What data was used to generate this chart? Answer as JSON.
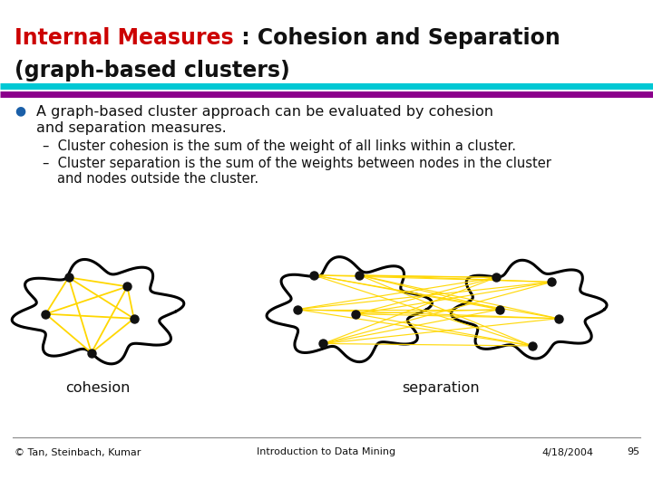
{
  "title_red": "Internal Measures",
  "title_black": " : Cohesion and Separation",
  "subtitle": "(graph-based clusters)",
  "bullet_text_line1": "A graph-based cluster approach can be evaluated by cohesion",
  "bullet_text_line2": "and separation measures.",
  "sub_bullets": [
    "Cluster cohesion is the sum of the weight of all links within a cluster.",
    "Cluster separation is the sum of the weights between nodes in the cluster\nand nodes outside the cluster."
  ],
  "footer_left": "© Tan, Steinbach, Kumar",
  "footer_center": "Introduction to Data Mining",
  "footer_right": "4/18/2004",
  "footer_page": "95",
  "bg_color": "#ffffff",
  "bar_color_top": "#00c8d4",
  "bar_color_bot": "#8b008b",
  "node_color": "#111111",
  "edge_color": "#ffd700",
  "cohesion_label": "cohesion",
  "separation_label": "separation",
  "title_fontsize": 17,
  "subtitle_fontsize": 17,
  "body_fontsize": 11.5,
  "subbullet_fontsize": 10.5
}
